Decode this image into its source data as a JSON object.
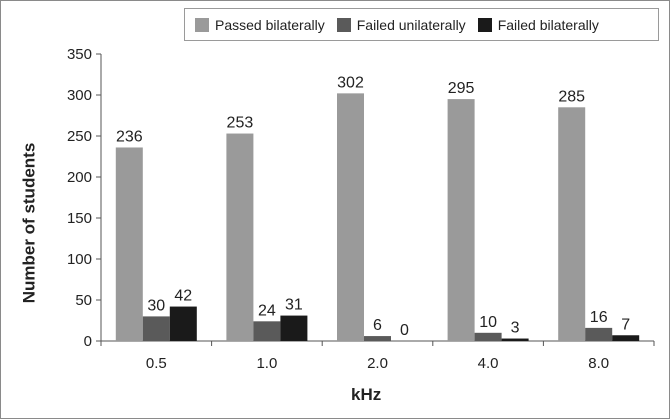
{
  "chart_data": {
    "type": "bar",
    "categories": [
      "0.5",
      "1.0",
      "2.0",
      "4.0",
      "8.0"
    ],
    "series": [
      {
        "name": "Passed bilaterally",
        "values": [
          236,
          253,
          302,
          295,
          285
        ],
        "color": "#9a9a9a"
      },
      {
        "name": "Failed unilaterally",
        "values": [
          30,
          24,
          6,
          10,
          16
        ],
        "color": "#5a5a5a"
      },
      {
        "name": "Failed bilaterally",
        "values": [
          42,
          31,
          0,
          3,
          7
        ],
        "color": "#1a1a1a"
      }
    ],
    "xlabel": "kHz",
    "ylabel": "Number of students",
    "ylim": [
      0,
      350
    ],
    "yticks": [
      "0",
      "50",
      "100",
      "150",
      "200",
      "250",
      "300",
      "350"
    ],
    "grid": false,
    "legend_position": "top-right"
  }
}
